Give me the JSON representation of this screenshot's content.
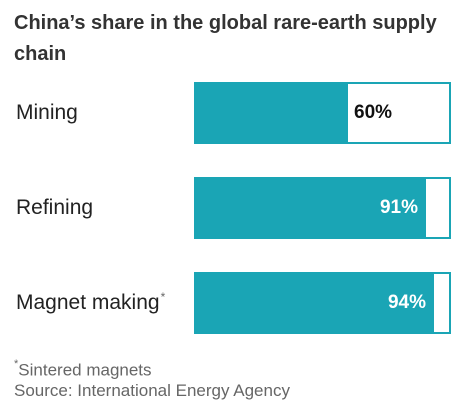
{
  "title": "China’s share in the global rare-earth supply chain",
  "chart_data": {
    "type": "bar",
    "orientation": "horizontal",
    "categories": [
      "Mining",
      "Refining",
      "Magnet making"
    ],
    "values": [
      60,
      91,
      94
    ],
    "value_labels": [
      "60%",
      "91%",
      "94%"
    ],
    "category_footnote_marks": [
      "",
      "",
      "*"
    ],
    "xlim": [
      0,
      100
    ],
    "title": "China’s share in the global rare-earth supply chain"
  },
  "footnote": {
    "mark": "*",
    "text": "Sintered magnets"
  },
  "source": "Source: International Energy Agency",
  "colors": {
    "bar": "#1aa5b5",
    "label_on_bar": "#ffffff",
    "label_off_bar": "#111111"
  }
}
